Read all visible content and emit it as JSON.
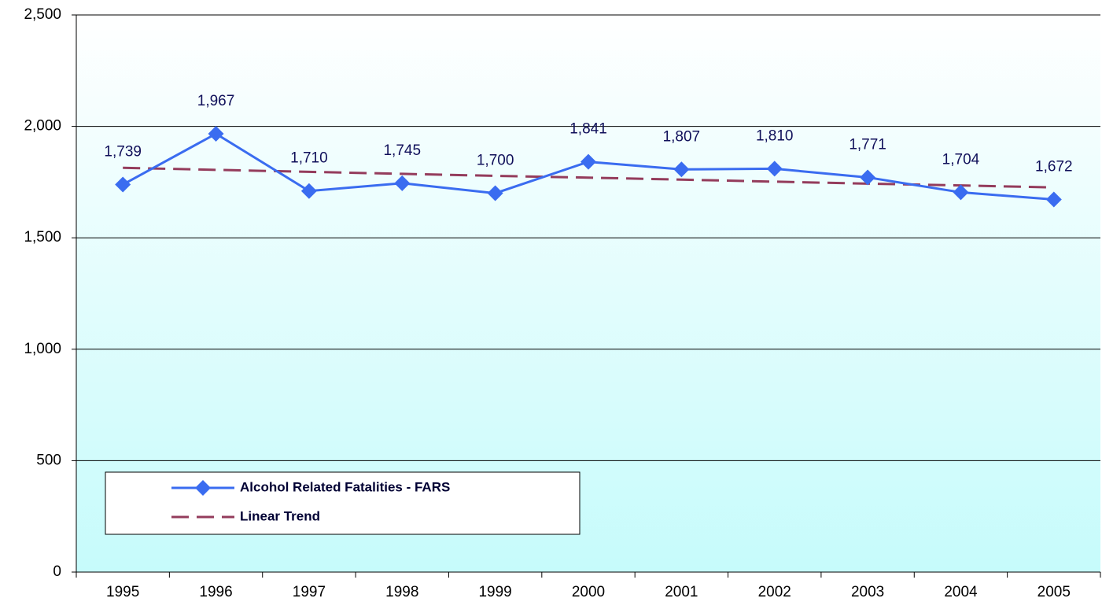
{
  "chart_data": {
    "type": "line",
    "categories": [
      "1995",
      "1996",
      "1997",
      "1998",
      "1999",
      "2000",
      "2001",
      "2002",
      "2003",
      "2004",
      "2005"
    ],
    "series": [
      {
        "name": "Alcohol Related Fatalities - FARS",
        "color": "#3a6cf0",
        "style": "solid",
        "marker": "diamond",
        "values": [
          1739,
          1967,
          1710,
          1745,
          1700,
          1841,
          1807,
          1810,
          1771,
          1704,
          1672
        ],
        "value_labels": [
          "1,739",
          "1,967",
          "1,710",
          "1,745",
          "1,700",
          "1,841",
          "1,807",
          "1,810",
          "1,771",
          "1,704",
          "1,672"
        ]
      },
      {
        "name": "Linear Trend",
        "color": "#943c5c",
        "style": "dashed",
        "values": [
          1814,
          1805,
          1796,
          1787,
          1778,
          1770,
          1761,
          1752,
          1743,
          1735,
          1726
        ]
      }
    ],
    "ylim": [
      0,
      2500
    ],
    "yticks": [
      0,
      500,
      {
        "value": 1000,
        "label": "1,000"
      },
      {
        "value": 1500,
        "label": "1,500"
      },
      {
        "value": 2000,
        "label": "2,000"
      },
      {
        "value": 2500,
        "label": "2,500"
      }
    ],
    "grid": true,
    "legend": "lower left"
  }
}
